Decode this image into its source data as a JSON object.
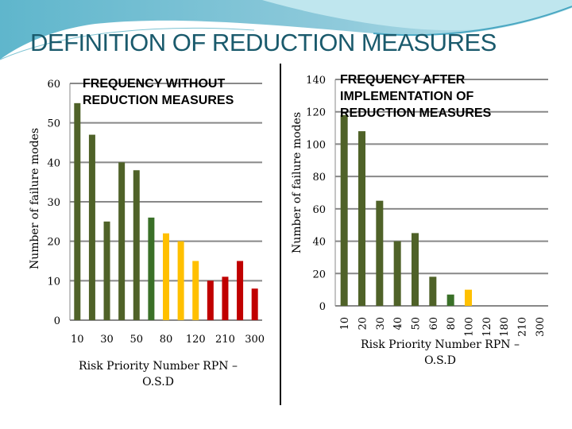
{
  "slide": {
    "title": "DEFINITION OF REDUCTION MEASURES"
  },
  "colors": {
    "olive": "#4f6228",
    "green": "#3a7028",
    "yellow": "#ffc000",
    "red": "#c00000",
    "title": "#1a5a6c"
  },
  "chart_data": [
    {
      "type": "bar",
      "title_lines": [
        "FREQUENCY WITHOUT",
        "REDUCTION MEASURES"
      ],
      "xlabel_lines": [
        "Risk Priority Number RPN –",
        "O.S.D"
      ],
      "ylabel": "Number of failure modes",
      "ylim": [
        0,
        60
      ],
      "yticks": [
        0,
        10,
        20,
        30,
        40,
        50,
        60
      ],
      "grid": true,
      "categories": [
        "10",
        "",
        "30",
        "",
        "50",
        "",
        "80",
        "",
        "120",
        "",
        "210",
        "",
        "300"
      ],
      "values": [
        55,
        47,
        25,
        40,
        38,
        26,
        22,
        20,
        15,
        10,
        11,
        15,
        8
      ],
      "bar_colors": [
        "olive",
        "olive",
        "olive",
        "olive",
        "olive",
        "green",
        "yellow",
        "yellow",
        "yellow",
        "red",
        "red",
        "red",
        "red"
      ]
    },
    {
      "type": "bar",
      "title_lines": [
        "FREQUENCY AFTER",
        "IMPLEMENTATION OF",
        "REDUCTION MEASURES"
      ],
      "xlabel_lines": [
        "Risk Priority Number RPN –",
        "O.S.D"
      ],
      "ylabel": "Number of failure modes",
      "ylim": [
        0,
        140
      ],
      "yticks": [
        0,
        20,
        40,
        60,
        80,
        100,
        120,
        140
      ],
      "grid": true,
      "categories": [
        "10",
        "20",
        "30",
        "40",
        "50",
        "60",
        "80",
        "100",
        "120",
        "180",
        "210",
        "300"
      ],
      "values": [
        118,
        108,
        65,
        40,
        45,
        18,
        7,
        10,
        0,
        0,
        0,
        0
      ],
      "bar_colors": [
        "olive",
        "olive",
        "olive",
        "olive",
        "olive",
        "olive",
        "green",
        "yellow",
        "olive",
        "olive",
        "olive",
        "olive"
      ]
    }
  ]
}
